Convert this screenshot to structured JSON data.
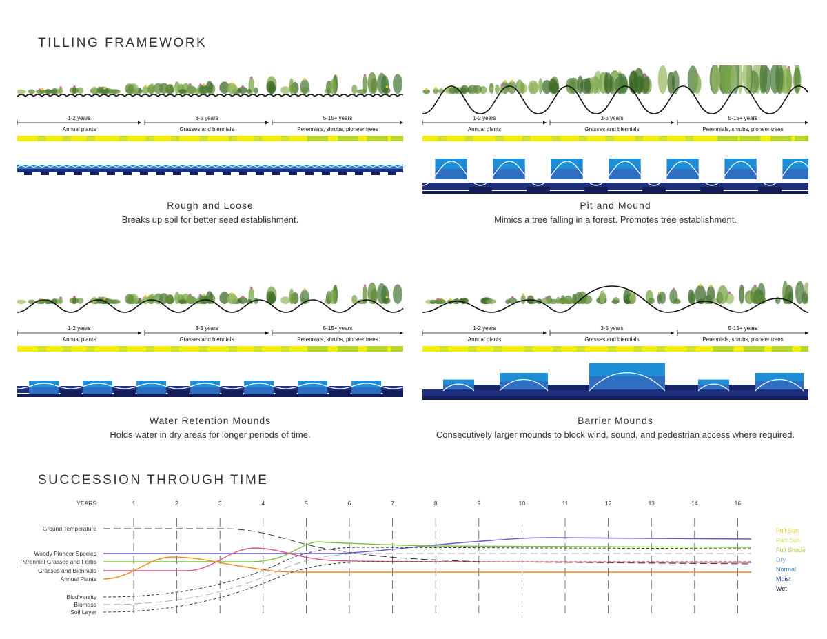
{
  "tilling": {
    "title": "TILLING FRAMEWORK",
    "panels": [
      {
        "id": "rough",
        "title": "Rough and Loose",
        "desc": "Breaks up soil for better seed establishment.",
        "type": "rough",
        "stages": [
          {
            "years": "1-2 years",
            "plants": "Annual plants"
          },
          {
            "years": "3-5 years",
            "plants": "Grasses and biennials"
          },
          {
            "years": "5-15+ years",
            "plants": "Perennials, shrubs, pioneer trees"
          }
        ]
      },
      {
        "id": "pit",
        "title": "Pit and Mound",
        "desc": "Mimics a tree falling in a forest. Promotes tree establishment.",
        "type": "pit",
        "stages": [
          {
            "years": "1-2 years",
            "plants": "Annual plants"
          },
          {
            "years": "3-5 years",
            "plants": "Grasses and biennials"
          },
          {
            "years": "5-15+ years",
            "plants": "Perennials, shrubs, pioneer trees"
          }
        ]
      },
      {
        "id": "water",
        "title": "Water Retention Mounds",
        "desc": "Holds water in dry areas for longer periods of time.",
        "type": "water",
        "stages": [
          {
            "years": "1-2 years",
            "plants": "Annual plants"
          },
          {
            "years": "3-5 years",
            "plants": "Grasses and biennials"
          },
          {
            "years": "5-15+ years",
            "plants": "Perennials, shrubs, pioneer trees"
          }
        ]
      },
      {
        "id": "barrier",
        "title": "Barrier Mounds",
        "desc": "Consecutively larger mounds to block wind, sound, and pedestrian access where required.",
        "type": "barrier",
        "stages": [
          {
            "years": "1-2 years",
            "plants": "Annual plants"
          },
          {
            "years": "3-5 years",
            "plants": "Grasses and biennials"
          },
          {
            "years": "5-15+ years",
            "plants": "Perennials, shrubs, pioneer trees"
          }
        ]
      }
    ]
  },
  "succession": {
    "title": "SUCCESSION THROUGH TIME",
    "years_label": "YEARS",
    "years": [
      "1",
      "2",
      "3",
      "4",
      "5",
      "6",
      "7",
      "8",
      "9",
      "10",
      "11",
      "12",
      "13",
      "14",
      "16"
    ],
    "rows": [
      "Ground Temperature",
      "Woody Pioneer Species",
      "Perennial Grasses and Forbs",
      "Grasses and Biennials",
      "Annual Plants",
      "Biodiversity",
      "Biomass",
      "Soil Layer"
    ],
    "legend": [
      {
        "label": "Full Sun",
        "color": "#f2d230"
      },
      {
        "label": "Part Sun",
        "color": "#d8d860"
      },
      {
        "label": "Full Shade",
        "color": "#b8c44a"
      },
      {
        "label": "Dry",
        "color": "#6fb0e0"
      },
      {
        "label": "Normal",
        "color": "#3a86c8"
      },
      {
        "label": "Moist",
        "color": "#1f3a78"
      },
      {
        "label": "Wet",
        "color": "#111a40"
      }
    ],
    "colors": {
      "woody": "#6a5ac8",
      "perennial": "#7cbf3a",
      "grasses": "#e0508a",
      "annual": "#f08a20",
      "dashed": "#333333",
      "light": "#aaaaaa"
    }
  }
}
